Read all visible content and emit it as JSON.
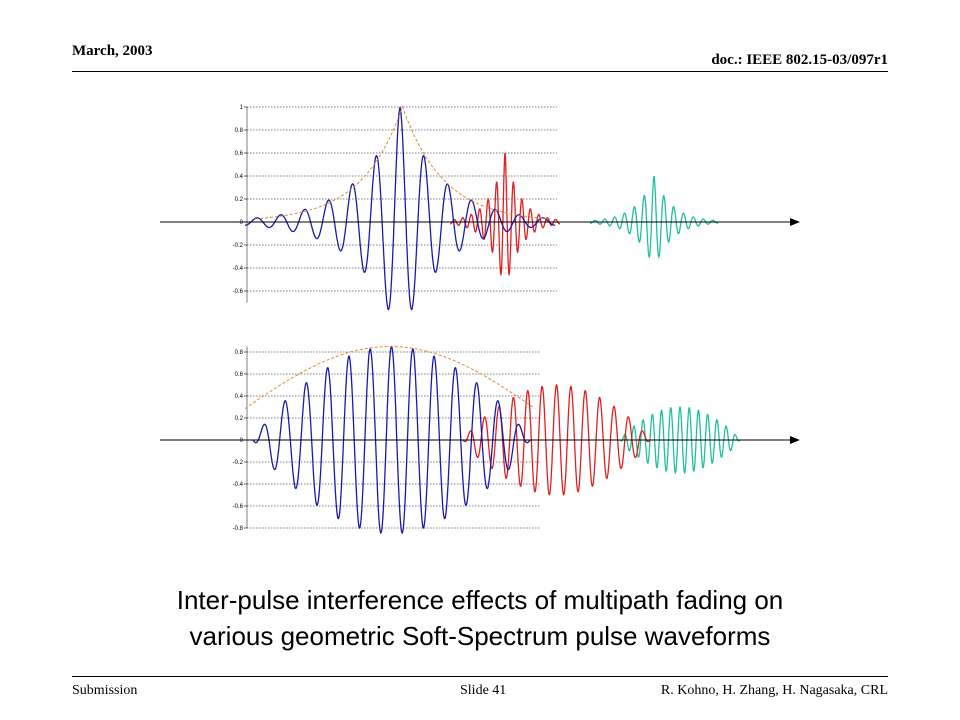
{
  "header": {
    "date": "March, 2003",
    "doc": "doc.: IEEE 802.15-03/097r1"
  },
  "footer": {
    "left": "Submission",
    "center": "Slide 41",
    "right": "R. Kohno, H. Zhang, H. Nagasaka, CRL"
  },
  "caption": {
    "line1": "Inter-pulse interference effects of multipath fading on",
    "line2": "various geometric Soft-Spectrum pulse waveforms"
  },
  "colors": {
    "primary_pulse": "#1a1aaa",
    "echo_1": "#e02020",
    "echo_2": "#20c0a0",
    "envelope": "#e08a2a",
    "axis": "#000000"
  },
  "chart_data": [
    {
      "type": "line",
      "title": "",
      "y_ticks": [
        "1",
        "0.8",
        "0.6",
        "0.4",
        "0.2",
        "0",
        "-0.2",
        "-0.4",
        "-0.6"
      ],
      "ylim": [
        -0.7,
        1.0
      ],
      "grid": true,
      "envelope": "exponential",
      "series": [
        {
          "color": "#1a1aaa",
          "amplitude": 1.0,
          "cycles": 13,
          "shape": "double-exponential"
        },
        {
          "color": "#e02020",
          "amplitude": 0.6,
          "cycles": 13,
          "shape": "double-exponential"
        },
        {
          "color": "#20c0a0",
          "amplitude": 0.4,
          "cycles": 13,
          "shape": "double-exponential"
        }
      ]
    },
    {
      "type": "line",
      "title": "",
      "y_ticks": [
        "0.8",
        "0.6",
        "0.4",
        "0.2",
        "0",
        "-0.2",
        "-0.4",
        "-0.6",
        "-0.8"
      ],
      "ylim": [
        -0.8,
        0.85
      ],
      "grid": true,
      "envelope": "raised-cosine",
      "series": [
        {
          "color": "#1a1aaa",
          "amplitude": 0.85,
          "cycles": 13,
          "shape": "cosine"
        },
        {
          "color": "#e02020",
          "amplitude": 0.5,
          "cycles": 13,
          "shape": "cosine"
        },
        {
          "color": "#20c0a0",
          "amplitude": 0.3,
          "cycles": 13,
          "shape": "cosine"
        }
      ]
    }
  ]
}
